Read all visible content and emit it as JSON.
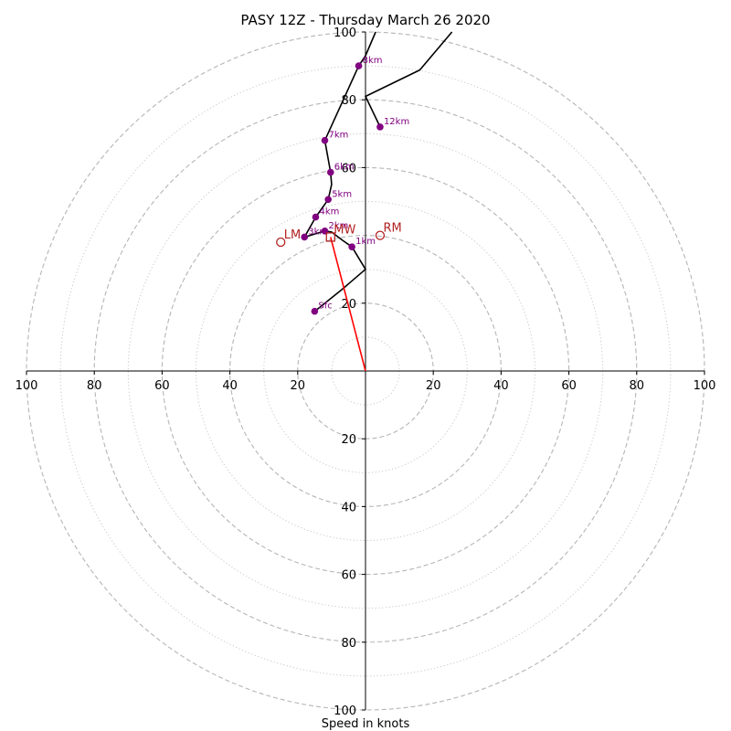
{
  "chart_data": {
    "type": "scatter",
    "title": "PASY 12Z - Thursday March 26 2020",
    "xlabel": "Speed in knots",
    "ylabel": "",
    "xlim": [
      -100,
      100
    ],
    "ylim": [
      -100,
      100
    ],
    "rings_dashed": [
      20,
      40,
      60,
      80,
      100
    ],
    "rings_dotted": [
      10,
      30,
      50,
      70,
      90
    ],
    "x_ticks": [
      {
        "value": -100,
        "label": "100"
      },
      {
        "value": -80,
        "label": "80"
      },
      {
        "value": -60,
        "label": "60"
      },
      {
        "value": -40,
        "label": "40"
      },
      {
        "value": -20,
        "label": "20"
      },
      {
        "value": 20,
        "label": "20"
      },
      {
        "value": 40,
        "label": "40"
      },
      {
        "value": 60,
        "label": "60"
      },
      {
        "value": 80,
        "label": "80"
      },
      {
        "value": 100,
        "label": "100"
      }
    ],
    "y_ticks": [
      {
        "value": 100,
        "label": "100"
      },
      {
        "value": 80,
        "label": "80"
      },
      {
        "value": 60,
        "label": "60"
      },
      {
        "value": 20,
        "label": "20"
      },
      {
        "value": -20,
        "label": "20"
      },
      {
        "value": -40,
        "label": "40"
      },
      {
        "value": -60,
        "label": "60"
      },
      {
        "value": -80,
        "label": "80"
      },
      {
        "value": -100,
        "label": "100"
      }
    ],
    "hodograph_line": {
      "color": "#000000",
      "points": [
        [
          -15,
          17.6
        ],
        [
          -7,
          24
        ],
        [
          0,
          30
        ],
        [
          -4,
          36.6
        ],
        [
          -7,
          38.7
        ],
        [
          -10,
          41
        ],
        [
          -12,
          41.3
        ],
        [
          -18,
          39.5
        ],
        [
          -14.7,
          45.4
        ],
        [
          -11,
          50.6
        ],
        [
          -10,
          55
        ],
        [
          -10.3,
          58.6
        ],
        [
          -12,
          68
        ],
        [
          -2,
          90
        ],
        [
          0,
          93
        ],
        [
          3,
          100
        ]
      ]
    },
    "upper_line": {
      "color": "#000000",
      "points": [
        [
          4.3,
          72
        ],
        [
          0,
          81
        ],
        [
          16,
          88.8
        ],
        [
          25.5,
          100
        ]
      ]
    },
    "height_markers": {
      "color": "#800080",
      "points": [
        {
          "label": "Sfc",
          "x": -15,
          "y": 17.6
        },
        {
          "label": "1km",
          "x": -4,
          "y": 36.6
        },
        {
          "label": "2km",
          "x": -12,
          "y": 41.3
        },
        {
          "label": "3km",
          "x": -18,
          "y": 39.5
        },
        {
          "label": "4km",
          "x": -14.7,
          "y": 45.4
        },
        {
          "label": "5km",
          "x": -11,
          "y": 50.6
        },
        {
          "label": "6km",
          "x": -10.3,
          "y": 58.6
        },
        {
          "label": "7km",
          "x": -12,
          "y": 68
        },
        {
          "label": "8km",
          "x": -2,
          "y": 90
        },
        {
          "label": "12km",
          "x": 4.3,
          "y": 72
        }
      ]
    },
    "storm_motion": {
      "color": "#B22222",
      "points": [
        {
          "label": "RM",
          "x": 4.3,
          "y": 40,
          "marker": "circle"
        },
        {
          "label": "LM",
          "x": -25,
          "y": 38,
          "marker": "circle"
        },
        {
          "label": "MW",
          "x": -10.3,
          "y": 39.5,
          "marker": "square"
        }
      ]
    },
    "mean_wind_vector": {
      "color": "#ff0000",
      "from": [
        0,
        0
      ],
      "to": [
        -10.3,
        39.5
      ]
    }
  }
}
